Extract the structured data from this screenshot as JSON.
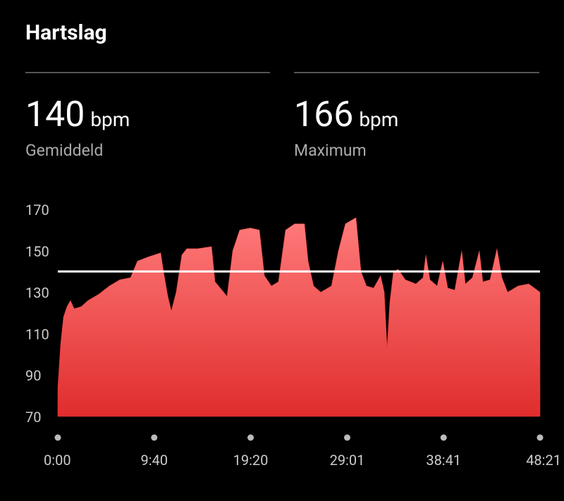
{
  "header": {
    "title": "Hartslag"
  },
  "stats": [
    {
      "value": 140,
      "unit": "bpm",
      "label": "Gemiddeld"
    },
    {
      "value": 166,
      "unit": "bpm",
      "label": "Maximum"
    }
  ],
  "chart_data": {
    "type": "area",
    "color": "#e53935",
    "x": [
      0,
      17,
      34,
      55,
      76,
      98,
      140,
      182,
      246,
      310,
      373,
      437,
      479,
      543,
      619,
      636,
      662,
      683,
      712,
      746,
      776,
      840,
      925,
      946,
      988,
      1018,
      1052,
      1094,
      1158,
      1213,
      1243,
      1285,
      1327,
      1370,
      1425,
      1484,
      1506,
      1539,
      1582,
      1646,
      1688,
      1730,
      1794,
      1824,
      1857,
      1900,
      1942,
      1964,
      1981,
      1997,
      2019,
      2048,
      2091,
      2154,
      2197,
      2214,
      2239,
      2282,
      2316,
      2346,
      2388,
      2430,
      2452,
      2494,
      2536,
      2557,
      2600,
      2642,
      2672,
      2706,
      2769,
      2833,
      2901
    ],
    "values": [
      84,
      105,
      118,
      123,
      126,
      122,
      123,
      126,
      129,
      133,
      136,
      137,
      145,
      147,
      149,
      140,
      128,
      121,
      130,
      148,
      151,
      151,
      152,
      135,
      131,
      128,
      150,
      160,
      161,
      160,
      138,
      133,
      135,
      160,
      163,
      163,
      145,
      133,
      130,
      133,
      150,
      163,
      166,
      140,
      133,
      132,
      138,
      130,
      103,
      125,
      140,
      141,
      136,
      134,
      137,
      148,
      136,
      133,
      145,
      132,
      131,
      150,
      134,
      137,
      150,
      135,
      136,
      151,
      137,
      130,
      133,
      134,
      130
    ],
    "xlim": [
      0,
      2901
    ],
    "xticks": [
      {
        "value": 0,
        "label": "0:00"
      },
      {
        "value": 580,
        "label": "9:40"
      },
      {
        "value": 1160,
        "label": "19:20"
      },
      {
        "value": 1741,
        "label": "29:01"
      },
      {
        "value": 2321,
        "label": "38:41"
      },
      {
        "value": 2901,
        "label": "48:21"
      }
    ],
    "ylim": [
      70,
      170
    ],
    "yticks": [
      70,
      90,
      110,
      130,
      150,
      170
    ]
  }
}
